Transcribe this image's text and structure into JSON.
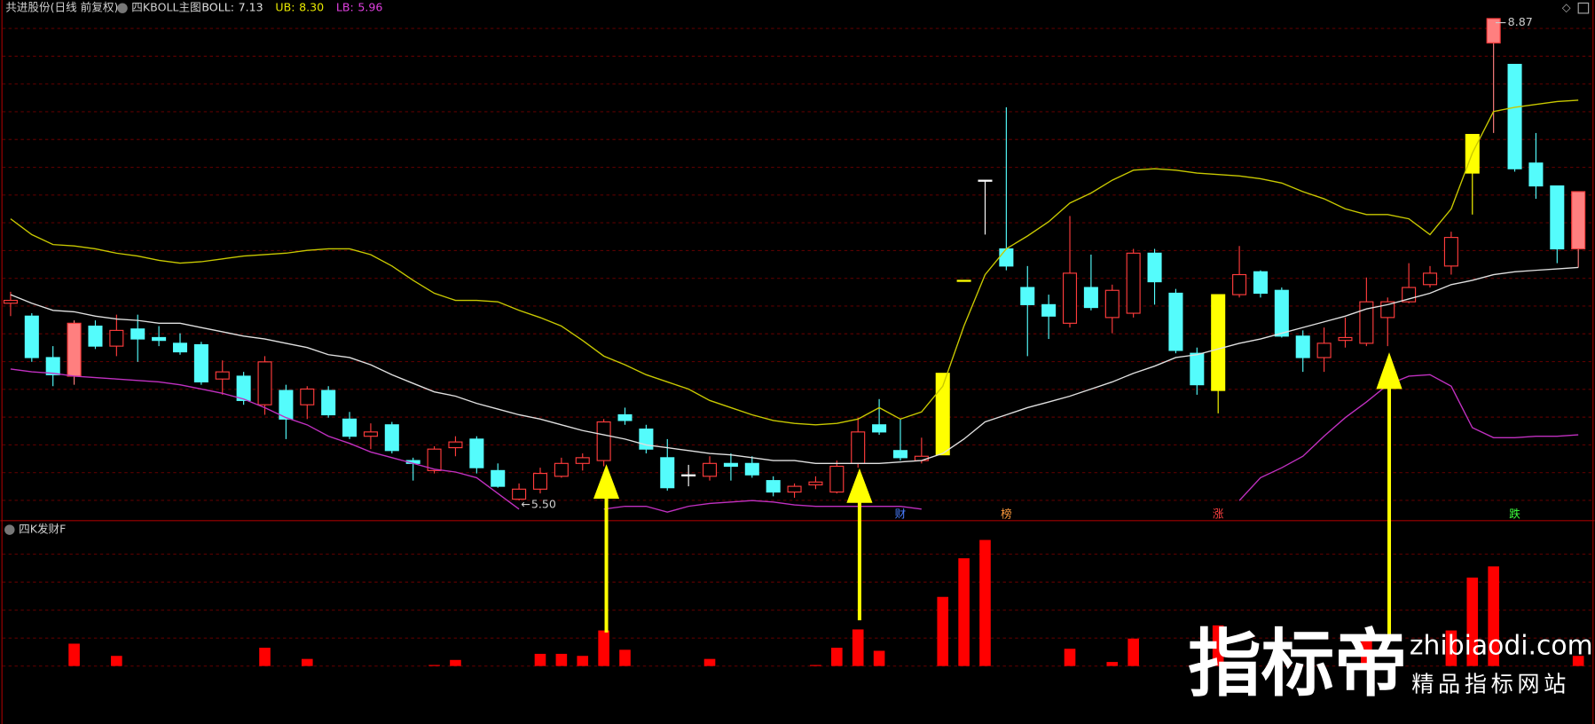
{
  "chart_data": {
    "type": "candlestick",
    "header": {
      "name": "共进股份(日线 前复权)",
      "indicator": "四KBOLL主图",
      "items": [
        {
          "name": "BOLL:",
          "value": "7.13",
          "color": "#e0e0e0"
        },
        {
          "name": "UB:",
          "value": "8.30",
          "color": "#e8e800"
        },
        {
          "name": "LB:",
          "value": "5.96",
          "color": "#e040e0"
        }
      ]
    },
    "lower_title": "四K发财F",
    "extreme_labels": {
      "high": "8.87",
      "low": "5.50"
    },
    "ylim": [
      5.36,
      9.0
    ],
    "hollow_color": "#ff3c3c",
    "candles": [
      {
        "o": 6.88,
        "h": 6.96,
        "l": 6.79,
        "c": 6.9
      },
      {
        "o": 6.79,
        "h": 6.81,
        "l": 6.47,
        "c": 6.5
      },
      {
        "o": 6.5,
        "h": 6.58,
        "l": 6.3,
        "c": 6.38
      },
      {
        "o": 6.37,
        "h": 6.76,
        "l": 6.31,
        "c": 6.74
      },
      {
        "o": 6.72,
        "h": 6.76,
        "l": 6.56,
        "c": 6.58
      },
      {
        "o": 6.58,
        "h": 6.8,
        "l": 6.51,
        "c": 6.69
      },
      {
        "o": 6.7,
        "h": 6.8,
        "l": 6.47,
        "c": 6.63
      },
      {
        "o": 6.64,
        "h": 6.72,
        "l": 6.58,
        "c": 6.62
      },
      {
        "o": 6.6,
        "h": 6.67,
        "l": 6.52,
        "c": 6.54
      },
      {
        "o": 6.59,
        "h": 6.61,
        "l": 6.31,
        "c": 6.33
      },
      {
        "o": 6.35,
        "h": 6.48,
        "l": 6.24,
        "c": 6.4
      },
      {
        "o": 6.37,
        "h": 6.4,
        "l": 6.17,
        "c": 6.2
      },
      {
        "o": 6.17,
        "h": 6.51,
        "l": 6.1,
        "c": 6.47
      },
      {
        "o": 6.27,
        "h": 6.31,
        "l": 5.93,
        "c": 6.07
      },
      {
        "o": 6.17,
        "h": 6.3,
        "l": 6.07,
        "c": 6.28
      },
      {
        "o": 6.27,
        "h": 6.3,
        "l": 6.08,
        "c": 6.1
      },
      {
        "o": 6.07,
        "h": 6.12,
        "l": 5.93,
        "c": 5.95
      },
      {
        "o": 5.95,
        "h": 6.04,
        "l": 5.86,
        "c": 5.98
      },
      {
        "o": 6.03,
        "h": 6.05,
        "l": 5.83,
        "c": 5.85
      },
      {
        "o": 5.78,
        "h": 5.8,
        "l": 5.64,
        "c": 5.76
      },
      {
        "o": 5.71,
        "h": 5.88,
        "l": 5.69,
        "c": 5.86
      },
      {
        "o": 5.87,
        "h": 5.95,
        "l": 5.81,
        "c": 5.91
      },
      {
        "o": 5.93,
        "h": 5.95,
        "l": 5.69,
        "c": 5.73
      },
      {
        "o": 5.71,
        "h": 5.76,
        "l": 5.59,
        "c": 5.6
      },
      {
        "o": 5.51,
        "h": 5.62,
        "l": 5.5,
        "c": 5.58
      },
      {
        "o": 5.58,
        "h": 5.73,
        "l": 5.55,
        "c": 5.69
      },
      {
        "o": 5.67,
        "h": 5.8,
        "l": 5.66,
        "c": 5.76
      },
      {
        "o": 5.76,
        "h": 5.83,
        "l": 5.71,
        "c": 5.8
      },
      {
        "o": 5.78,
        "h": 6.07,
        "l": 5.74,
        "c": 6.05
      },
      {
        "o": 6.1,
        "h": 6.15,
        "l": 6.03,
        "c": 6.06
      },
      {
        "o": 6.0,
        "h": 6.03,
        "l": 5.83,
        "c": 5.86
      },
      {
        "o": 5.8,
        "h": 5.93,
        "l": 5.57,
        "c": 5.59
      },
      {
        "o": 5.68,
        "h": 5.75,
        "l": 5.6,
        "c": 5.68
      },
      {
        "o": 5.67,
        "h": 5.81,
        "l": 5.64,
        "c": 5.76
      },
      {
        "o": 5.76,
        "h": 5.83,
        "l": 5.64,
        "c": 5.74
      },
      {
        "o": 5.76,
        "h": 5.81,
        "l": 5.66,
        "c": 5.68
      },
      {
        "o": 5.64,
        "h": 5.67,
        "l": 5.53,
        "c": 5.56
      },
      {
        "o": 5.56,
        "h": 5.62,
        "l": 5.52,
        "c": 5.6
      },
      {
        "o": 5.61,
        "h": 5.67,
        "l": 5.58,
        "c": 5.63
      },
      {
        "o": 5.56,
        "h": 5.78,
        "l": 5.55,
        "c": 5.74
      },
      {
        "o": 5.76,
        "h": 6.08,
        "l": 5.73,
        "c": 5.98
      },
      {
        "o": 6.03,
        "h": 6.21,
        "l": 5.96,
        "c": 5.98
      },
      {
        "o": 5.85,
        "h": 6.07,
        "l": 5.78,
        "c": 5.8
      },
      {
        "o": 5.78,
        "h": 5.94,
        "l": 5.76,
        "c": 5.81
      },
      {
        "o": 5.82,
        "h": 6.39,
        "l": 5.82,
        "c": 6.39
      },
      {
        "o": 7.04,
        "h": 7.04,
        "l": 7.04,
        "c": 7.04
      },
      {
        "o": 7.74,
        "h": 7.74,
        "l": 7.36,
        "c": 7.74
      },
      {
        "o": 7.26,
        "h": 8.25,
        "l": 7.11,
        "c": 7.14
      },
      {
        "o": 6.99,
        "h": 7.14,
        "l": 6.51,
        "c": 6.87
      },
      {
        "o": 6.87,
        "h": 6.94,
        "l": 6.63,
        "c": 6.79
      },
      {
        "o": 6.74,
        "h": 7.49,
        "l": 6.71,
        "c": 7.09
      },
      {
        "o": 6.99,
        "h": 7.22,
        "l": 6.83,
        "c": 6.85
      },
      {
        "o": 6.78,
        "h": 7.01,
        "l": 6.67,
        "c": 6.97
      },
      {
        "o": 6.81,
        "h": 7.26,
        "l": 6.78,
        "c": 7.23
      },
      {
        "o": 7.23,
        "h": 7.26,
        "l": 6.87,
        "c": 7.03
      },
      {
        "o": 6.95,
        "h": 6.98,
        "l": 6.53,
        "c": 6.55
      },
      {
        "o": 6.53,
        "h": 6.57,
        "l": 6.24,
        "c": 6.31
      },
      {
        "o": 6.94,
        "h": 6.94,
        "l": 6.11,
        "c": 6.27
      },
      {
        "o": 6.94,
        "h": 7.28,
        "l": 6.92,
        "c": 7.08
      },
      {
        "o": 7.1,
        "h": 7.11,
        "l": 6.92,
        "c": 6.95
      },
      {
        "o": 6.97,
        "h": 6.99,
        "l": 6.64,
        "c": 6.65
      },
      {
        "o": 6.65,
        "h": 6.69,
        "l": 6.4,
        "c": 6.5
      },
      {
        "o": 6.5,
        "h": 6.71,
        "l": 6.4,
        "c": 6.6
      },
      {
        "o": 6.62,
        "h": 6.78,
        "l": 6.57,
        "c": 6.64
      },
      {
        "o": 6.6,
        "h": 7.06,
        "l": 6.58,
        "c": 6.89
      },
      {
        "o": 6.78,
        "h": 6.92,
        "l": 6.58,
        "c": 6.89
      },
      {
        "o": 6.89,
        "h": 7.16,
        "l": 6.88,
        "c": 6.99
      },
      {
        "o": 7.01,
        "h": 7.14,
        "l": 6.99,
        "c": 7.09
      },
      {
        "o": 7.14,
        "h": 7.38,
        "l": 7.08,
        "c": 7.34
      },
      {
        "o": 7.79,
        "h": 8.06,
        "l": 7.5,
        "c": 8.06
      },
      {
        "o": 8.7,
        "h": 8.87,
        "l": 8.07,
        "c": 8.87
      },
      {
        "o": 8.55,
        "h": 8.55,
        "l": 7.8,
        "c": 7.82
      },
      {
        "o": 7.86,
        "h": 8.07,
        "l": 7.61,
        "c": 7.7
      },
      {
        "o": 7.7,
        "h": 7.7,
        "l": 7.16,
        "c": 7.26
      },
      {
        "o": 7.26,
        "h": 7.66,
        "l": 7.13,
        "c": 7.66
      }
    ],
    "colors": [
      "#ff3c3c",
      "#54fcfc",
      "#54fcfc",
      "#ff7f7f",
      "#54fcfc",
      "#ff3c3c",
      "#54fcfc",
      "#54fcfc",
      "#54fcfc",
      "#54fcfc",
      "#ff3c3c",
      "#54fcfc",
      "#ff3c3c",
      "#54fcfc",
      "#ff3c3c",
      "#54fcfc",
      "#54fcfc",
      "#ff3c3c",
      "#54fcfc",
      "#54fcfc",
      "#ff3c3c",
      "#ff3c3c",
      "#54fcfc",
      "#54fcfc",
      "#ff3c3c",
      "#ff3c3c",
      "#ff3c3c",
      "#ff3c3c",
      "#ff3c3c",
      "#54fcfc",
      "#54fcfc",
      "#54fcfc",
      "#ffffff",
      "#ff3c3c",
      "#54fcfc",
      "#54fcfc",
      "#54fcfc",
      "#ff3c3c",
      "#ff3c3c",
      "#ff3c3c",
      "#ff3c3c",
      "#54fcfc",
      "#54fcfc",
      "#ff3c3c",
      "#ffff00",
      "#ffff00",
      "#ffffff",
      "#54fcfc",
      "#54fcfc",
      "#54fcfc",
      "#ff3c3c",
      "#54fcfc",
      "#ff3c3c",
      "#ff3c3c",
      "#54fcfc",
      "#54fcfc",
      "#54fcfc",
      "#ffff00",
      "#ff3c3c",
      "#54fcfc",
      "#54fcfc",
      "#54fcfc",
      "#ff3c3c",
      "#ff3c3c",
      "#ff3c3c",
      "#ff3c3c",
      "#ff3c3c",
      "#ff3c3c",
      "#ff3c3c",
      "#ffff00",
      "#ff7f7f",
      "#54fcfc",
      "#54fcfc",
      "#54fcfc",
      "#ff7f7f"
    ],
    "series": [
      {
        "name": "UB",
        "color": "#c8c800",
        "values": [
          7.47,
          7.36,
          7.29,
          7.28,
          7.26,
          7.23,
          7.21,
          7.18,
          7.16,
          7.17,
          7.19,
          7.21,
          7.22,
          7.23,
          7.25,
          7.26,
          7.26,
          7.22,
          7.14,
          7.04,
          6.95,
          6.9,
          6.9,
          6.89,
          6.83,
          6.78,
          6.72,
          6.62,
          6.51,
          6.45,
          6.38,
          6.33,
          6.28,
          6.2,
          6.15,
          6.1,
          6.06,
          6.04,
          6.03,
          6.04,
          6.07,
          6.15,
          6.07,
          6.12,
          6.3,
          6.72,
          7.08,
          7.26,
          7.35,
          7.45,
          7.58,
          7.65,
          7.74,
          7.81,
          7.82,
          7.81,
          7.79,
          7.78,
          7.77,
          7.75,
          7.72,
          7.66,
          7.61,
          7.54,
          7.5,
          7.5,
          7.47,
          7.36,
          7.54,
          7.93,
          8.22,
          8.25,
          8.27,
          8.29,
          8.3
        ]
      },
      {
        "name": "BOLL",
        "color": "#e0e0e0",
        "values": [
          6.94,
          6.88,
          6.83,
          6.82,
          6.79,
          6.77,
          6.76,
          6.74,
          6.74,
          6.71,
          6.68,
          6.65,
          6.63,
          6.6,
          6.57,
          6.52,
          6.5,
          6.45,
          6.38,
          6.32,
          6.26,
          6.23,
          6.18,
          6.14,
          6.1,
          6.07,
          6.03,
          5.99,
          5.96,
          5.93,
          5.89,
          5.87,
          5.85,
          5.83,
          5.82,
          5.8,
          5.78,
          5.78,
          5.76,
          5.76,
          5.76,
          5.76,
          5.77,
          5.78,
          5.83,
          5.93,
          6.05,
          6.1,
          6.15,
          6.19,
          6.23,
          6.28,
          6.33,
          6.39,
          6.44,
          6.5,
          6.52,
          6.56,
          6.6,
          6.63,
          6.67,
          6.71,
          6.75,
          6.79,
          6.84,
          6.87,
          6.91,
          6.95,
          7.01,
          7.04,
          7.08,
          7.1,
          7.11,
          7.12,
          7.13
        ]
      },
      {
        "name": "LB",
        "color": "#c030c0",
        "values": [
          6.42,
          6.4,
          6.39,
          6.37,
          6.36,
          6.35,
          6.34,
          6.33,
          6.31,
          6.28,
          6.25,
          6.21,
          6.15,
          6.08,
          6.03,
          5.95,
          5.9,
          5.84,
          5.8,
          5.76,
          5.72,
          5.7,
          5.66,
          5.55,
          5.44,
          null,
          null,
          null,
          5.44,
          5.46,
          5.46,
          5.42,
          5.46,
          5.48,
          5.49,
          5.5,
          5.49,
          5.47,
          5.46,
          5.46,
          5.46,
          5.46,
          5.46,
          5.44,
          null,
          null,
          null,
          null,
          null,
          null,
          null,
          null,
          null,
          null,
          null,
          null,
          null,
          null,
          5.5,
          5.66,
          5.73,
          5.81,
          5.95,
          6.08,
          6.19,
          6.31,
          6.37,
          6.38,
          6.3,
          6.01,
          5.94,
          5.94,
          5.95,
          5.95,
          5.96
        ]
      }
    ],
    "signals": [
      null,
      null,
      null,
      null,
      null,
      null,
      null,
      null,
      null,
      null,
      null,
      null,
      null,
      null,
      null,
      null,
      null,
      null,
      null,
      null,
      null,
      null,
      null,
      null,
      null,
      null,
      null,
      null,
      null,
      null,
      null,
      null,
      null,
      null,
      null,
      null,
      null,
      null,
      null,
      null,
      null,
      null,
      {
        "text": "财",
        "color": "#4a7dff"
      },
      null,
      null,
      null,
      null,
      {
        "text": "榜",
        "color": "#ff9a3c"
      },
      null,
      null,
      null,
      null,
      null,
      null,
      null,
      null,
      null,
      {
        "text": "涨",
        "color": "#ff4040"
      },
      null,
      null,
      null,
      null,
      null,
      null,
      null,
      null,
      null,
      null,
      null,
      null,
      null,
      {
        "text": "跌",
        "color": "#3cff3c"
      },
      null,
      null,
      null
    ],
    "lower": {
      "color": "#ff0000",
      "ylim": [
        0,
        138
      ],
      "values": [
        0,
        0,
        0,
        22,
        0,
        10,
        0,
        0,
        0,
        0,
        0,
        0,
        18,
        0,
        7,
        0,
        0,
        0,
        0,
        0,
        1,
        6,
        0,
        0,
        0,
        12,
        12,
        10,
        35,
        16,
        0,
        0,
        0,
        7,
        0,
        0,
        0,
        0,
        1,
        18,
        36,
        15,
        0,
        0,
        68,
        106,
        124,
        0,
        0,
        0,
        17,
        0,
        4,
        27,
        0,
        0,
        0,
        40,
        0,
        0,
        0,
        0,
        0,
        0,
        30,
        0,
        0,
        0,
        35,
        87,
        98,
        0,
        0,
        0,
        10
      ]
    }
  },
  "watermark": {
    "brand": "指标帝",
    "url": "zhibiaodi.com",
    "slogan": "精品指标网站"
  }
}
